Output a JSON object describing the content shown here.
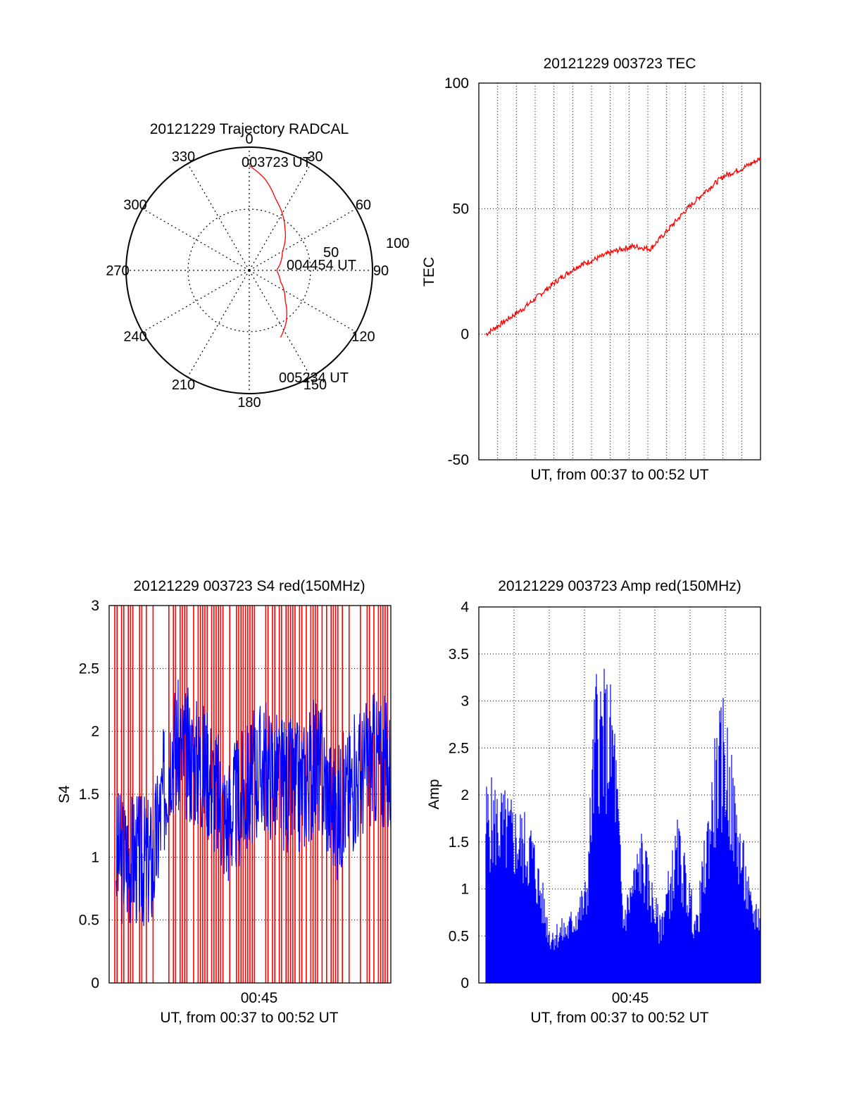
{
  "colors": {
    "red": "#ff0000",
    "blue": "#0000ff",
    "black": "#000000",
    "grid": "#000000"
  },
  "chart_data": [
    {
      "type": "polar",
      "title": "20121229 Trajectory RADCAL",
      "angle_labels": [
        "0",
        "30",
        "60",
        "90",
        "120",
        "150",
        "180",
        "210",
        "240",
        "270",
        "300",
        "330"
      ],
      "radius_labels": [
        "50",
        "100"
      ],
      "rlim": [
        0,
        100
      ],
      "trajectory": {
        "azimuth": [
          0,
          10,
          20,
          40,
          60,
          90,
          110,
          130,
          145,
          155
        ],
        "radius": [
          85,
          75,
          62,
          45,
          31,
          22,
          27,
          38,
          52,
          60
        ]
      },
      "annotations": [
        "003723 UT",
        "004454 UT",
        "005234 UT"
      ]
    },
    {
      "type": "line",
      "title": "20121229 003723 TEC",
      "xlabel": "UT, from 00:37 to 00:52 UT",
      "ylabel": "TEC",
      "ylim": [
        -50,
        100
      ],
      "yticks": [
        "100",
        "50",
        "0",
        "-50"
      ],
      "x": [
        0,
        1,
        2,
        3,
        4,
        5,
        6,
        7,
        8,
        9,
        10,
        11,
        12,
        13,
        14
      ],
      "series": [
        {
          "values": [
            0,
            5,
            10,
            16,
            22,
            27,
            30,
            33,
            35,
            34,
            42,
            50,
            57,
            63,
            66
          ]
        }
      ],
      "xlim": [
        0,
        15
      ],
      "grid": true
    },
    {
      "type": "line",
      "title": "20121229 003723 S4 red(150MHz)",
      "xlabel": "UT, from 00:37 to 00:52 UT",
      "ylabel": "S4",
      "ylim": [
        0,
        3
      ],
      "yticks": [
        "3",
        "2.5",
        "2",
        "1.5",
        "1",
        "0.5",
        "0"
      ],
      "xtick_label": "00:45",
      "xtick_value": 8,
      "x": [
        0,
        1,
        2,
        3,
        4,
        5,
        6,
        7,
        8,
        9,
        10,
        11,
        12,
        13,
        14
      ],
      "series": [
        {
          "values": [
            1.0,
            1.0,
            0.95,
            1.9,
            1.8,
            1.7,
            1.3,
            1.5,
            1.75,
            1.6,
            1.55,
            1.75,
            1.35,
            1.6,
            1.8
          ]
        }
      ],
      "xlim": [
        0,
        15
      ],
      "grid": true
    },
    {
      "type": "bar",
      "title": "20121229 003723 Amp red(150MHz)",
      "xlabel": "UT, from 00:37 to 00:52 UT",
      "ylabel": "Amp",
      "ylim": [
        0,
        4
      ],
      "yticks": [
        "4",
        "3.5",
        "3",
        "2.5",
        "2",
        "1.5",
        "1",
        "0.5",
        "0"
      ],
      "xtick_label": "00:45",
      "xtick_value": 8,
      "x": [
        0.5,
        1.5,
        2.5,
        3.5,
        4.5,
        5.5,
        6.0,
        6.5,
        7.0,
        7.5,
        8.5,
        9.5,
        10.5,
        11.5,
        12.5,
        13.0,
        13.5,
        14.5
      ],
      "series": [
        {
          "values": [
            2.1,
            1.9,
            1.7,
            0.6,
            0.7,
            1.1,
            3.3,
            3.2,
            3.0,
            0.8,
            1.6,
            0.7,
            1.7,
            0.7,
            2.5,
            3.0,
            2.2,
            0.9
          ]
        }
      ],
      "xlim": [
        0,
        15
      ],
      "grid": true
    }
  ]
}
